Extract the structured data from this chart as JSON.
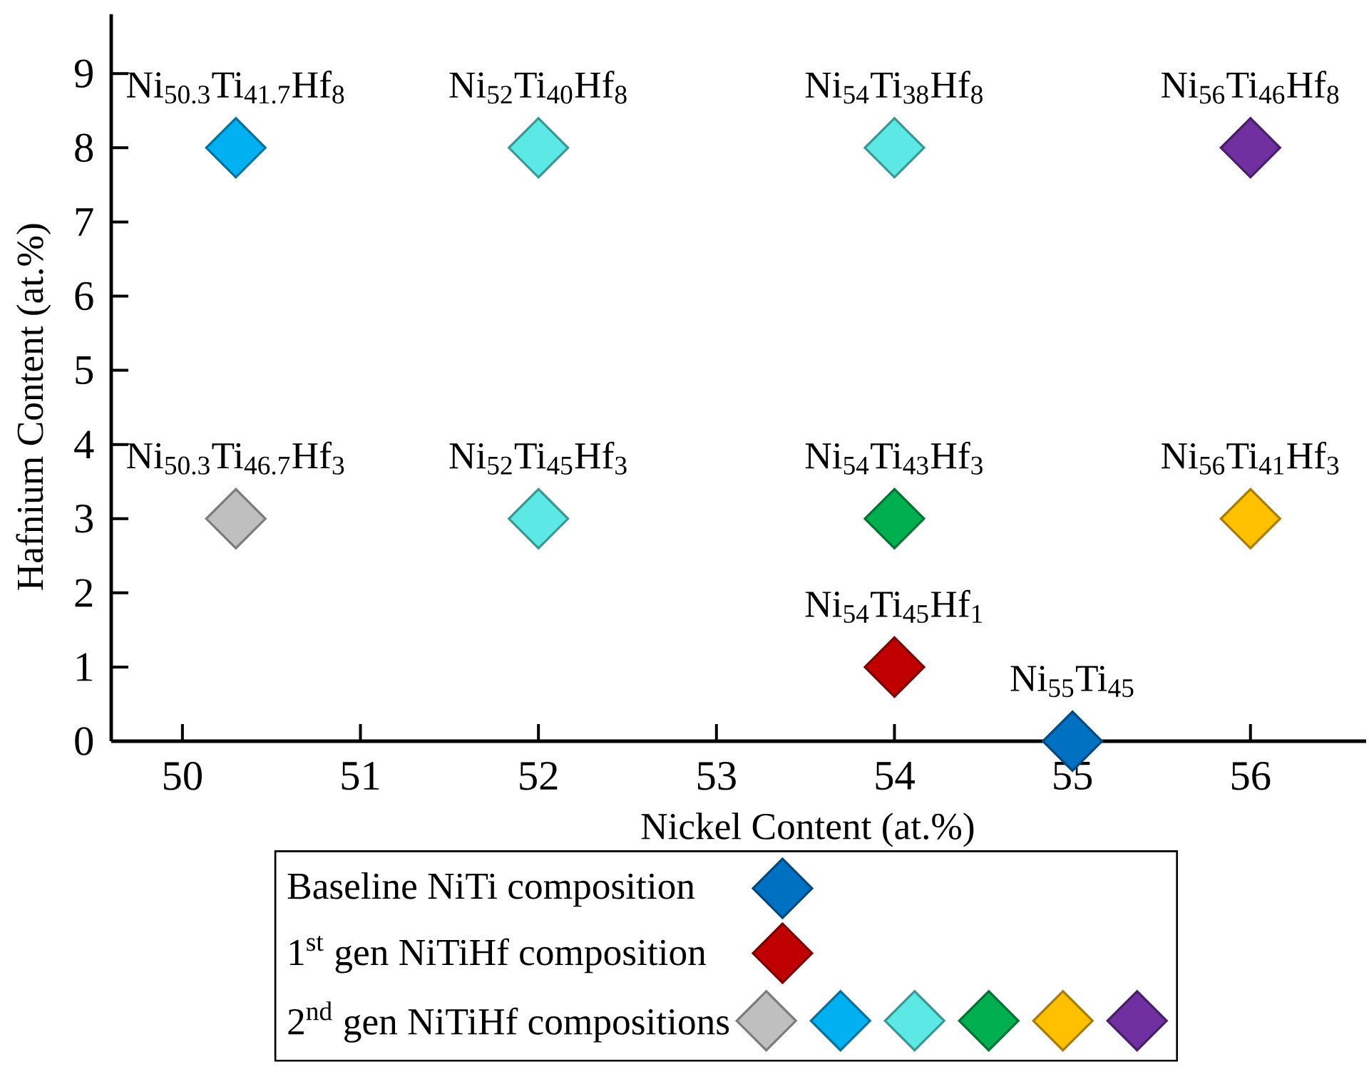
{
  "chart_data": {
    "type": "scatter",
    "xlabel": "Nickel Content (at.%)",
    "ylabel": "Hafnium Content (at.%)",
    "xlim": [
      49.6,
      56.65
    ],
    "ylim": [
      0,
      9.8
    ],
    "xticks": [
      50,
      51,
      52,
      53,
      54,
      55,
      56
    ],
    "yticks": [
      0,
      1,
      2,
      3,
      4,
      5,
      6,
      7,
      8,
      9
    ],
    "marker": "diamond",
    "grid": false,
    "legend": "bottom",
    "series": [
      {
        "name": "Baseline NiTi composition",
        "color": "#0070c0",
        "x": [
          55
        ],
        "values": [
          0
        ]
      },
      {
        "name": "1$^{st}$ gen NiTiHf composition",
        "color": "#c00000",
        "x": [
          54
        ],
        "values": [
          1
        ]
      },
      {
        "name": "2$^{nd}$ gen NiTiHf compositions",
        "colors": [
          "#bfbfbf",
          "#00b0f0",
          "#5ce8e4",
          "#00b050",
          "#ffc000",
          "#7030a0",
          "#5ce8e4",
          "#5ce8e4"
        ],
        "x": [
          50.3,
          50.3,
          52,
          54,
          56,
          56,
          52,
          54
        ],
        "values": [
          3,
          8,
          8,
          3,
          3,
          8,
          3,
          8
        ]
      }
    ],
    "annotations": [
      {
        "text": "Ni$_{50.3}$Ti$_{41.7}$Hf$_{8}$",
        "x": 50.3,
        "y": 8
      },
      {
        "text": "Ni$_{52}$Ti$_{40}$Hf$_{8}$",
        "x": 52,
        "y": 8
      },
      {
        "text": "Ni$_{54}$Ti$_{38}$Hf$_{8}$",
        "x": 54,
        "y": 8
      },
      {
        "text": "Ni$_{56}$Ti$_{46}$Hf$_{8}$",
        "x": 56,
        "y": 8
      },
      {
        "text": "Ni$_{50.3}$Ti$_{46.7}$Hf$_{3}$",
        "x": 50.3,
        "y": 3
      },
      {
        "text": "Ni$_{52}$Ti$_{45}$Hf$_{3}$",
        "x": 52,
        "y": 3
      },
      {
        "text": "Ni$_{54}$Ti$_{43}$Hf$_{3}$",
        "x": 54,
        "y": 3
      },
      {
        "text": "Ni$_{56}$Ti$_{41}$Hf$_{3}$",
        "x": 56,
        "y": 3
      },
      {
        "text": "Ni$_{54}$Ti$_{45}$Hf$_{1}$",
        "x": 54,
        "y": 1
      },
      {
        "text": "Ni$_{55}$Ti$_{45}$",
        "x": 55,
        "y": 0
      }
    ]
  }
}
